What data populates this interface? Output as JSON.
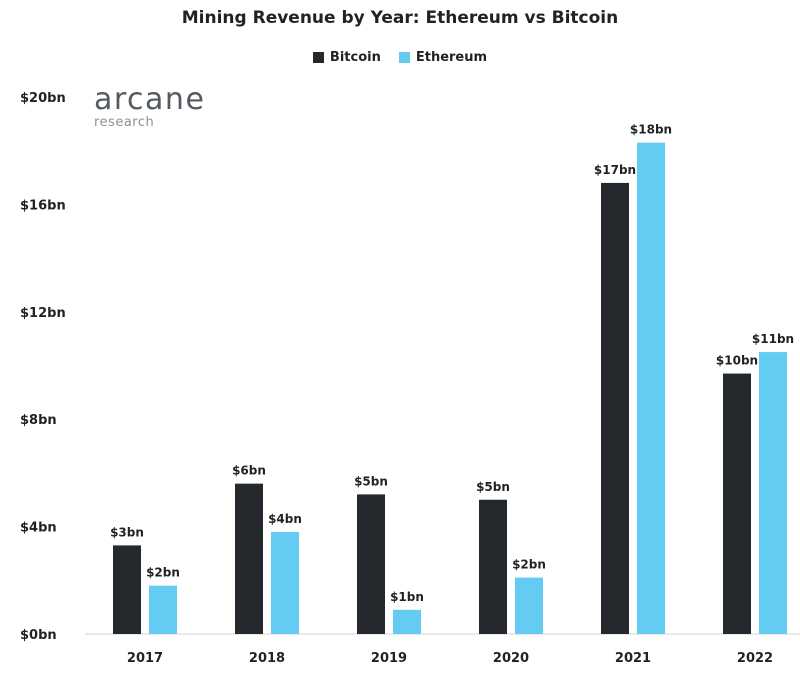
{
  "chart_data": {
    "type": "bar",
    "title": "Mining Revenue by Year: Ethereum vs Bitcoin",
    "categories": [
      "2017",
      "2018",
      "2019",
      "2020",
      "2021",
      "2022"
    ],
    "series": [
      {
        "name": "Bitcoin",
        "color": "#25292e",
        "values": [
          3.3,
          5.6,
          5.2,
          5.0,
          16.8,
          9.7
        ],
        "labels": [
          "$3bn",
          "$6bn",
          "$5bn",
          "$5bn",
          "$17bn",
          "$10bn"
        ]
      },
      {
        "name": "Ethereum",
        "color": "#64cbf3",
        "values": [
          1.8,
          3.8,
          0.9,
          2.1,
          18.3,
          10.5
        ],
        "labels": [
          "$2bn",
          "$4bn",
          "$1bn",
          "$2bn",
          "$18bn",
          "$11bn"
        ]
      }
    ],
    "yticks": [
      0,
      4,
      8,
      12,
      16,
      20
    ],
    "ytick_labels": [
      "$0bn",
      "$4bn",
      "$8bn",
      "$12bn",
      "$16bn",
      "$20bn"
    ],
    "ylim": [
      0,
      20
    ],
    "xlabel": "",
    "ylabel": "",
    "grid": false,
    "legend_position": "top-center"
  },
  "logo": {
    "name": "arcane",
    "sub": "research"
  }
}
